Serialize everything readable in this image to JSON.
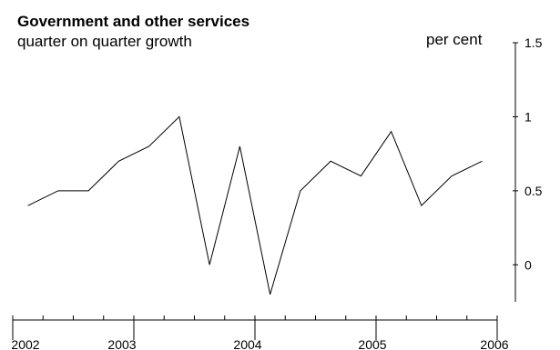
{
  "chart_data": {
    "type": "line",
    "title": "Government and other services",
    "subtitle": "quarter on quarter growth",
    "unit_label": "per cent",
    "ylim": [
      -0.25,
      1.5
    ],
    "y_ticks": [
      1.5,
      1,
      0.5,
      0
    ],
    "y_tick_labels": [
      "1.5",
      "1",
      "0.5",
      "0"
    ],
    "x_start": "2002 Q1",
    "year_labels": [
      "2002",
      "2003",
      "2004",
      "2005",
      "2006"
    ],
    "series": [
      {
        "values": [
          0.4,
          0.5,
          0.5,
          0.7,
          0.8,
          1.0,
          0.0,
          0.8,
          -0.2,
          0.5,
          0.7,
          0.6,
          0.9,
          0.4,
          0.6,
          0.7
        ]
      }
    ],
    "grid": false,
    "legend": "none"
  }
}
